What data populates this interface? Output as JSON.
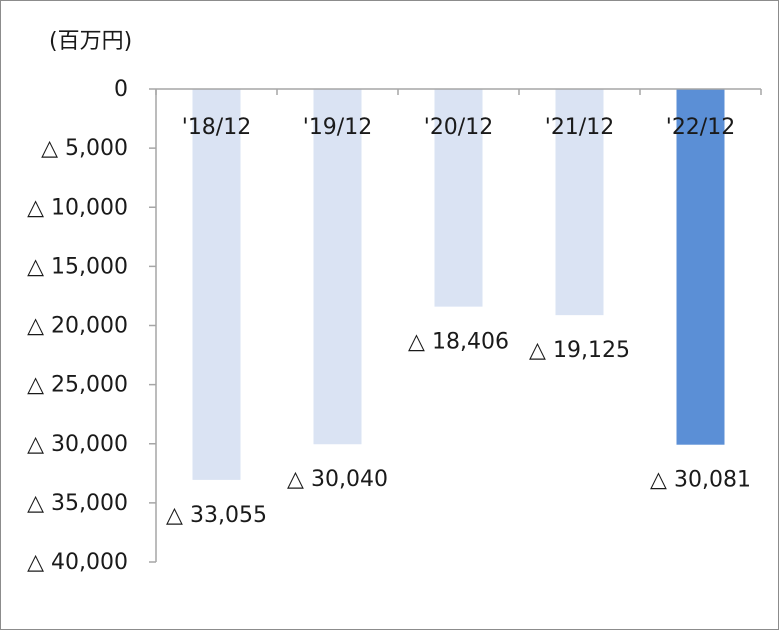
{
  "chart_data": {
    "type": "bar",
    "unit_label": "(百万円)",
    "categories": [
      "'18/12",
      "'19/12",
      "'20/12",
      "'21/12",
      "'22/12"
    ],
    "values": [
      -33055,
      -30040,
      -18406,
      -19125,
      -30081
    ],
    "value_labels": [
      "△ 33,055",
      "△ 30,040",
      "△ 18,406",
      "△ 19,125",
      "△ 30,081"
    ],
    "ylim": [
      -40000,
      0
    ],
    "y_ticks": [
      0,
      -5000,
      -10000,
      -15000,
      -20000,
      -25000,
      -30000,
      -35000,
      -40000
    ],
    "y_tick_labels": [
      "0",
      "△ 5,000",
      "△ 10,000",
      "△ 15,000",
      "△ 20,000",
      "△ 25,000",
      "△ 30,000",
      "△ 35,000",
      "△ 40,000"
    ],
    "grid": false,
    "colors": {
      "bar": "#dae3f3",
      "highlight": "#5b8fd6",
      "axis": "#a6a6a6"
    },
    "highlight_index": 4
  }
}
